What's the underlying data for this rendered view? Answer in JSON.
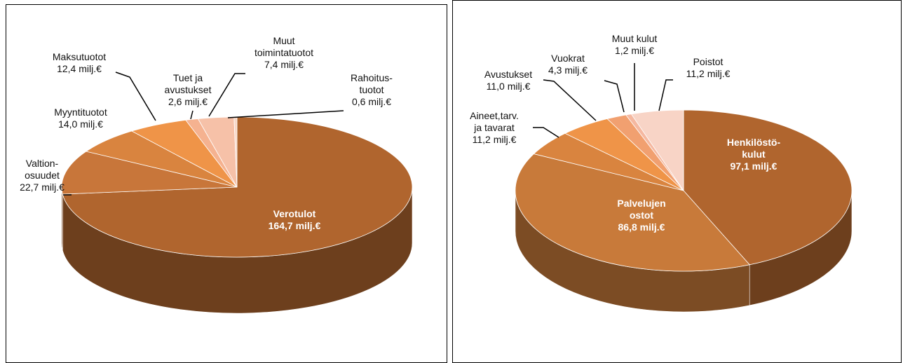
{
  "chart_data": [
    {
      "type": "pie3d",
      "categories": [
        "Verotulot",
        "Valtion-\nosuudet",
        "Myyntituotot",
        "Maksutuotot",
        "Tuet ja\navustukset",
        "Muut\ntoimintatuotot",
        "Rahoitus-\ntuotot"
      ],
      "values": [
        164.7,
        22.7,
        14.0,
        12.4,
        2.6,
        7.4,
        0.6
      ],
      "value_labels": [
        "164,7 milj.€",
        "22,7 milj.€",
        "14,0 milj.€",
        "12,4 milj.€",
        "2,6 milj.€",
        "7,4 milj.€",
        "0,6 milj.€"
      ],
      "colors": [
        "#b0652e",
        "#c8763a",
        "#d9843f",
        "#ef9448",
        "#f5b290",
        "#f6c1a8",
        "#f9d8c8"
      ]
    },
    {
      "type": "pie3d",
      "categories": [
        "Henkilöstö-\nkulut",
        "Palvelujen\nostot",
        "Aineet,tarv.\nja tavarat",
        "Avustukset",
        "Vuokrat",
        "Muut kulut",
        "Poistot"
      ],
      "values": [
        97.1,
        86.8,
        11.2,
        11.0,
        4.3,
        1.2,
        11.2
      ],
      "value_labels": [
        "97,1 milj.€",
        "86,8 milj.€",
        "11,2 milj.€",
        "11,0 milj.€",
        "4,3 milj.€",
        "1,2 milj.€",
        "11,2 milj.€"
      ],
      "colors": [
        "#b0652e",
        "#c87a3a",
        "#d9843f",
        "#ef9448",
        "#f1a070",
        "#f5b8a0",
        "#f8d4c6"
      ]
    }
  ]
}
